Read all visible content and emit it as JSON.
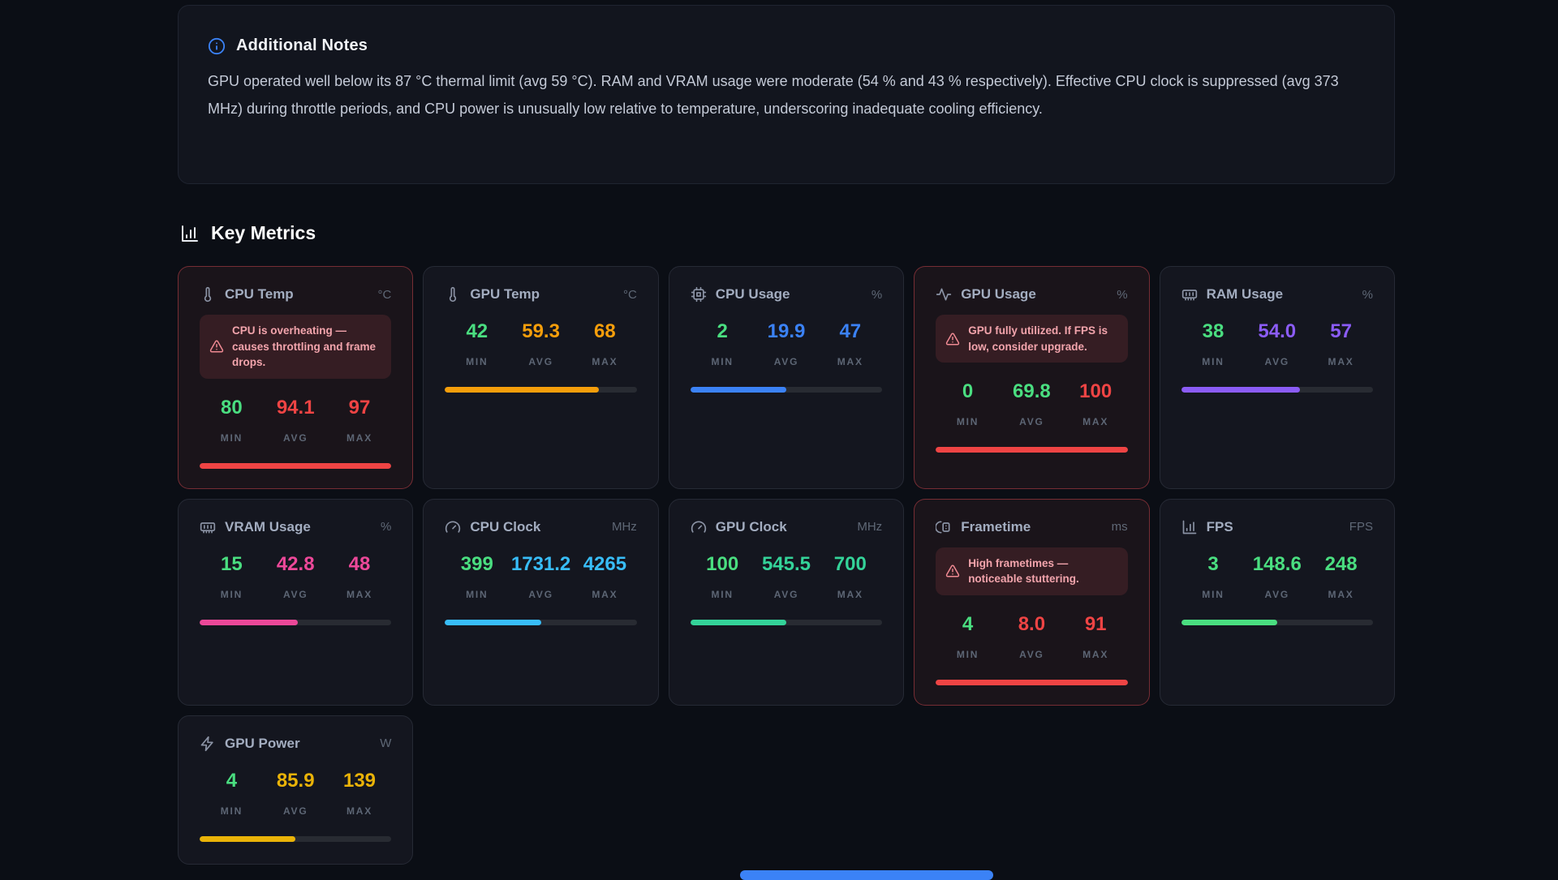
{
  "notes": {
    "title": "Additional Notes",
    "body": "GPU operated well below its 87 °C thermal limit (avg 59 °C). RAM and VRAM usage were moderate (54 % and 43 % respectively). Effective CPU clock is suppressed (avg 373 MHz) during throttle periods, and CPU power is unusually low relative to temperature, underscoring inadequate cooling efficiency."
  },
  "section": {
    "title": "Key Metrics"
  },
  "stat_labels": {
    "min": "MIN",
    "avg": "AVG",
    "max": "MAX"
  },
  "colors": {
    "min_green": "#4ade80",
    "red": "#ef4444",
    "amber": "#f59e0b",
    "blue": "#3b82f6",
    "violet": "#8b5cf6",
    "pink": "#ec4899",
    "sky": "#38bdf8",
    "teal": "#34d399",
    "green": "#4ade80",
    "gold": "#eab308",
    "accent_info": "#3b82f6"
  },
  "metrics": [
    {
      "title": "CPU Temp",
      "unit": "°C",
      "icon": "thermometer-icon",
      "alert": true,
      "warning": "CPU is overheating — causes throttling and frame drops.",
      "min": "80",
      "avg": "94.1",
      "max": "97",
      "avg_color": "#ef4444",
      "max_color": "#ef4444",
      "bar_color": "#ef4444",
      "bar_pct": 100
    },
    {
      "title": "GPU Temp",
      "unit": "°C",
      "icon": "thermometer-icon",
      "alert": false,
      "warning": null,
      "min": "42",
      "avg": "59.3",
      "max": "68",
      "avg_color": "#f59e0b",
      "max_color": "#f59e0b",
      "bar_color": "#f59e0b",
      "bar_pct": 80
    },
    {
      "title": "CPU Usage",
      "unit": "%",
      "icon": "cpu-chip-icon",
      "alert": false,
      "warning": null,
      "min": "2",
      "avg": "19.9",
      "max": "47",
      "avg_color": "#3b82f6",
      "max_color": "#3b82f6",
      "bar_color": "#3b82f6",
      "bar_pct": 50
    },
    {
      "title": "GPU Usage",
      "unit": "%",
      "icon": "activity-icon",
      "alert": true,
      "warning": "GPU fully utilized. If FPS is low, consider upgrade.",
      "min": "0",
      "avg": "69.8",
      "max": "100",
      "avg_color": "#4ade80",
      "max_color": "#ef4444",
      "bar_color": "#ef4444",
      "bar_pct": 100
    },
    {
      "title": "RAM Usage",
      "unit": "%",
      "icon": "memory-icon",
      "alert": false,
      "warning": null,
      "min": "38",
      "avg": "54.0",
      "max": "57",
      "avg_color": "#8b5cf6",
      "max_color": "#8b5cf6",
      "bar_color": "#8b5cf6",
      "bar_pct": 62
    },
    {
      "title": "VRAM Usage",
      "unit": "%",
      "icon": "memory-icon",
      "alert": false,
      "warning": null,
      "min": "15",
      "avg": "42.8",
      "max": "48",
      "avg_color": "#ec4899",
      "max_color": "#ec4899",
      "bar_color": "#ec4899",
      "bar_pct": 51
    },
    {
      "title": "CPU Clock",
      "unit": "MHz",
      "icon": "gauge-icon",
      "alert": false,
      "warning": null,
      "min": "399",
      "avg": "1731.2",
      "max": "4265",
      "avg_color": "#38bdf8",
      "max_color": "#38bdf8",
      "bar_color": "#38bdf8",
      "bar_pct": 50
    },
    {
      "title": "GPU Clock",
      "unit": "MHz",
      "icon": "gauge-icon",
      "alert": false,
      "warning": null,
      "min": "100",
      "avg": "545.5",
      "max": "700",
      "avg_color": "#34d399",
      "max_color": "#34d399",
      "bar_color": "#34d399",
      "bar_pct": 50
    },
    {
      "title": "Frametime",
      "unit": "ms",
      "icon": "frametime-icon",
      "alert": true,
      "warning": "High frametimes — noticeable stuttering.",
      "min": "4",
      "avg": "8.0",
      "max": "91",
      "avg_color": "#ef4444",
      "max_color": "#ef4444",
      "bar_color": "#ef4444",
      "bar_pct": 100
    },
    {
      "title": "FPS",
      "unit": "FPS",
      "icon": "bar-chart-icon",
      "alert": false,
      "warning": null,
      "min": "3",
      "avg": "148.6",
      "max": "248",
      "avg_color": "#4ade80",
      "max_color": "#4ade80",
      "bar_color": "#4ade80",
      "bar_pct": 50
    },
    {
      "title": "GPU Power",
      "unit": "W",
      "icon": "zap-icon",
      "alert": false,
      "warning": null,
      "min": "4",
      "avg": "85.9",
      "max": "139",
      "avg_color": "#eab308",
      "max_color": "#eab308",
      "bar_color": "#eab308",
      "bar_pct": 50
    }
  ]
}
